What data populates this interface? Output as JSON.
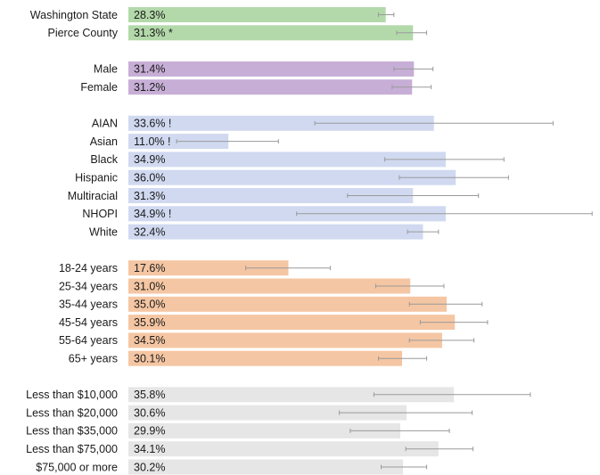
{
  "chart_data": {
    "type": "bar",
    "orientation": "horizontal",
    "xlim": [
      0,
      52
    ],
    "grid": false,
    "legend": "none",
    "error_bars": true,
    "groups": [
      {
        "color": "#b3d9aa",
        "rows": [
          {
            "category": "Washington State",
            "value": 28.3,
            "label": "28.3%",
            "ci": [
              27.5,
              29.2
            ]
          },
          {
            "category": "Pierce County",
            "value": 31.3,
            "label": "31.3% *",
            "ci": [
              29.5,
              32.8
            ]
          }
        ]
      },
      {
        "color": "#c7aed6",
        "rows": [
          {
            "category": "Male",
            "value": 31.4,
            "label": "31.4%",
            "ci": [
              29.2,
              33.5
            ]
          },
          {
            "category": "Female",
            "value": 31.2,
            "label": "31.2%",
            "ci": [
              29.0,
              33.3
            ]
          }
        ]
      },
      {
        "color": "#d0d9f0",
        "rows": [
          {
            "category": "AIAN",
            "value": 33.6,
            "label": "33.6% !",
            "ci": [
              20.5,
              46.7
            ]
          },
          {
            "category": "Asian",
            "value": 11.0,
            "label": "11.0% !",
            "ci": [
              5.3,
              16.5
            ]
          },
          {
            "category": "Black",
            "value": 34.9,
            "label": "34.9%",
            "ci": [
              28.2,
              41.3
            ]
          },
          {
            "category": "Hispanic",
            "value": 36.0,
            "label": "36.0%",
            "ci": [
              29.8,
              41.8
            ]
          },
          {
            "category": "Multiracial",
            "value": 31.3,
            "label": "31.3%",
            "ci": [
              24.1,
              38.5
            ]
          },
          {
            "category": "NHOPI",
            "value": 34.9,
            "label": "34.9% !",
            "ci": [
              18.5,
              51.0
            ]
          },
          {
            "category": "White",
            "value": 32.4,
            "label": "32.4%",
            "ci": [
              30.7,
              34.1
            ]
          }
        ]
      },
      {
        "color": "#f5c6a3",
        "rows": [
          {
            "category": "18-24 years",
            "value": 17.6,
            "label": "17.6%",
            "ci": [
              12.9,
              22.2
            ]
          },
          {
            "category": "25-34 years",
            "value": 31.0,
            "label": "31.0%",
            "ci": [
              27.2,
              34.7
            ]
          },
          {
            "category": "35-44 years",
            "value": 35.0,
            "label": "35.0%",
            "ci": [
              30.9,
              38.9
            ]
          },
          {
            "category": "45-54 years",
            "value": 35.9,
            "label": "35.9%",
            "ci": [
              32.1,
              39.5
            ]
          },
          {
            "category": "55-64 years",
            "value": 34.5,
            "label": "34.5%",
            "ci": [
              30.9,
              38.0
            ]
          },
          {
            "category": "65+ years",
            "value": 30.1,
            "label": "30.1%",
            "ci": [
              27.5,
              32.8
            ]
          }
        ]
      },
      {
        "color": "#e6e6e6",
        "rows": [
          {
            "category": "Less than $10,000",
            "value": 35.8,
            "label": "35.8%",
            "ci": [
              27.0,
              44.2
            ]
          },
          {
            "category": "Less than $20,000",
            "value": 30.6,
            "label": "30.6%",
            "ci": [
              23.2,
              37.8
            ]
          },
          {
            "category": "Less than $35,000",
            "value": 29.9,
            "label": "29.9%",
            "ci": [
              24.4,
              35.3
            ]
          },
          {
            "category": "Less than $75,000",
            "value": 34.1,
            "label": "34.1%",
            "ci": [
              30.5,
              37.9
            ]
          },
          {
            "category": "$75,000 or more",
            "value": 30.2,
            "label": "30.2%",
            "ci": [
              27.8,
              32.8
            ]
          }
        ]
      }
    ]
  }
}
